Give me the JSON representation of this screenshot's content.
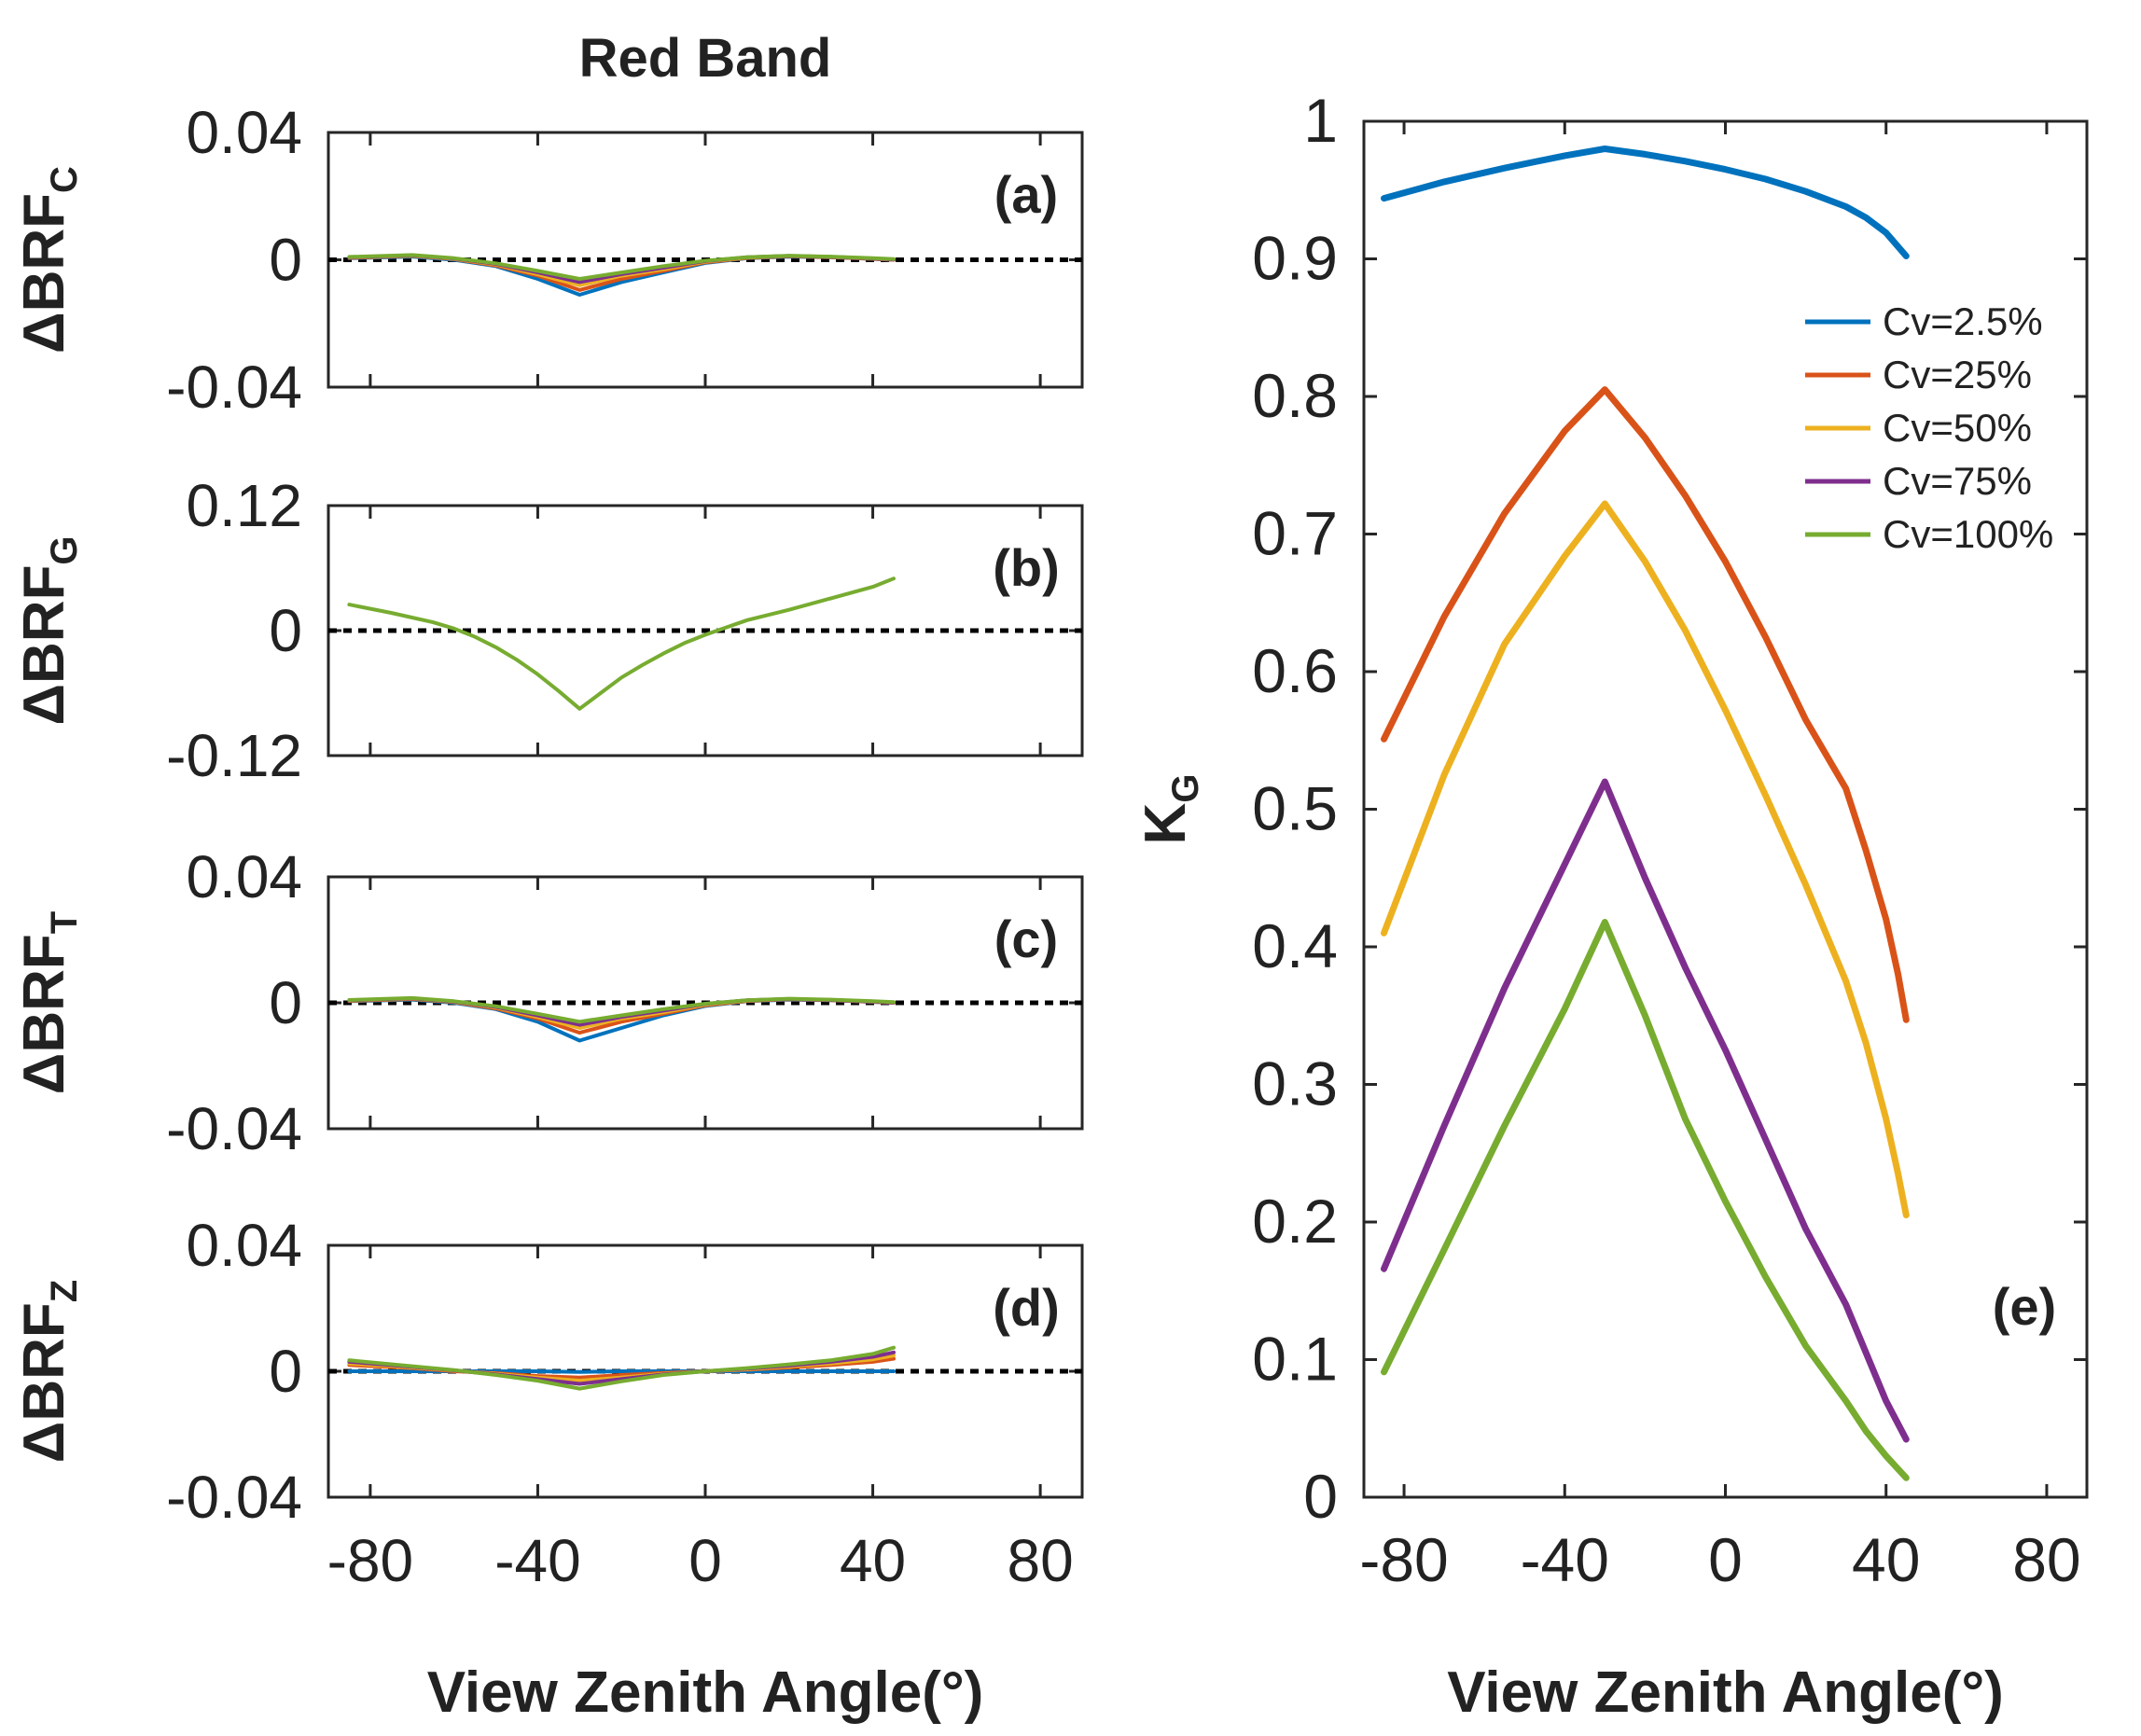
{
  "figure": {
    "title": "Red Band"
  },
  "colors": {
    "Cv=2.5%": "#0072BD",
    "Cv=25%": "#D95319",
    "Cv=50%": "#EDB120",
    "Cv=75%": "#7E2F8E",
    "Cv=100%": "#77AC30",
    "zero_line": "#000000",
    "axes": "#262626"
  },
  "chart_data": [
    {
      "id": "a",
      "type": "line",
      "panel_label": "(a)",
      "ylabel_main": "ΔBRF",
      "ylabel_sub": "C",
      "xlabel": "",
      "xlim": [
        -90,
        90
      ],
      "ylim": [
        -0.04,
        0.04
      ],
      "xticks": [
        -80,
        -40,
        0,
        40,
        80
      ],
      "yticks": [
        -0.04,
        0,
        0.04
      ],
      "ytick_labels": [
        "-0.04",
        "0",
        "0.04"
      ],
      "xtick_labels": [],
      "zero_line": true,
      "x": [
        -85,
        -70,
        -60,
        -50,
        -40,
        -30,
        -20,
        -10,
        0,
        10,
        20,
        30,
        40,
        45
      ],
      "series": [
        {
          "name": "Cv=2.5%",
          "values": [
            0.0005,
            0.001,
            0.0,
            -0.002,
            -0.006,
            -0.011,
            -0.007,
            -0.004,
            -0.001,
            0.0005,
            0.001,
            0.0008,
            0.0003,
            0.0
          ]
        },
        {
          "name": "Cv=25%",
          "values": [
            0.0006,
            0.0012,
            0.0002,
            -0.0018,
            -0.005,
            -0.0095,
            -0.006,
            -0.0035,
            -0.0008,
            0.0006,
            0.0011,
            0.0008,
            0.0003,
            0.0
          ]
        },
        {
          "name": "Cv=50%",
          "values": [
            0.0007,
            0.0013,
            0.0003,
            -0.0015,
            -0.0045,
            -0.008,
            -0.005,
            -0.003,
            -0.0006,
            0.0007,
            0.0012,
            0.0009,
            0.0004,
            0.0001
          ]
        },
        {
          "name": "Cv=75%",
          "values": [
            0.0008,
            0.0014,
            0.0004,
            -0.0013,
            -0.004,
            -0.007,
            -0.0045,
            -0.0025,
            -0.0004,
            0.0008,
            0.0012,
            0.0009,
            0.0004,
            0.0001
          ]
        },
        {
          "name": "Cv=100%",
          "values": [
            0.0009,
            0.0015,
            0.0005,
            -0.0011,
            -0.0035,
            -0.006,
            -0.004,
            -0.002,
            -0.0003,
            0.0008,
            0.0013,
            0.001,
            0.0005,
            0.0002
          ]
        }
      ]
    },
    {
      "id": "b",
      "type": "line",
      "panel_label": "(b)",
      "ylabel_main": "ΔBRF",
      "ylabel_sub": "G",
      "xlabel": "",
      "xlim": [
        -90,
        90
      ],
      "ylim": [
        -0.12,
        0.12
      ],
      "xticks": [
        -80,
        -40,
        0,
        40,
        80
      ],
      "yticks": [
        -0.12,
        0,
        0.12
      ],
      "ytick_labels": [
        "-0.12",
        "0",
        "0.12"
      ],
      "xtick_labels": [],
      "zero_line": true,
      "x": [
        -85,
        -75,
        -65,
        -60,
        -55,
        -50,
        -45,
        -40,
        -35,
        -30,
        -25,
        -20,
        -15,
        -10,
        -5,
        0,
        5,
        10,
        20,
        30,
        40,
        45
      ],
      "series": [
        {
          "name": "Cv=100%",
          "values": [
            0.025,
            0.017,
            0.008,
            0.002,
            -0.006,
            -0.016,
            -0.028,
            -0.042,
            -0.058,
            -0.075,
            -0.06,
            -0.045,
            -0.033,
            -0.022,
            -0.012,
            -0.004,
            0.003,
            0.01,
            0.02,
            0.031,
            0.042,
            0.05
          ]
        }
      ]
    },
    {
      "id": "c",
      "type": "line",
      "panel_label": "(c)",
      "ylabel_main": "ΔBRF",
      "ylabel_sub": "T",
      "xlabel": "",
      "xlim": [
        -90,
        90
      ],
      "ylim": [
        -0.04,
        0.04
      ],
      "xticks": [
        -80,
        -40,
        0,
        40,
        80
      ],
      "yticks": [
        -0.04,
        0,
        0.04
      ],
      "ytick_labels": [
        "-0.04",
        "0",
        "0.04"
      ],
      "xtick_labels": [],
      "zero_line": true,
      "x": [
        -85,
        -70,
        -60,
        -50,
        -40,
        -30,
        -20,
        -10,
        0,
        10,
        20,
        30,
        40,
        45
      ],
      "series": [
        {
          "name": "Cv=2.5%",
          "values": [
            0.0005,
            0.001,
            0.0,
            -0.002,
            -0.006,
            -0.012,
            -0.008,
            -0.004,
            -0.001,
            0.0005,
            0.001,
            0.0008,
            0.0003,
            0.0
          ]
        },
        {
          "name": "Cv=25%",
          "values": [
            0.0006,
            0.0012,
            0.0002,
            -0.0018,
            -0.005,
            -0.0095,
            -0.006,
            -0.0035,
            -0.0008,
            0.0006,
            0.0011,
            0.0008,
            0.0003,
            0.0
          ]
        },
        {
          "name": "Cv=50%",
          "values": [
            0.0007,
            0.0013,
            0.0003,
            -0.0015,
            -0.0045,
            -0.008,
            -0.005,
            -0.003,
            -0.0006,
            0.0007,
            0.0012,
            0.0009,
            0.0004,
            0.0001
          ]
        },
        {
          "name": "Cv=75%",
          "values": [
            0.0008,
            0.0014,
            0.0004,
            -0.0013,
            -0.004,
            -0.007,
            -0.0045,
            -0.0025,
            -0.0004,
            0.0008,
            0.0012,
            0.0009,
            0.0004,
            0.0001
          ]
        },
        {
          "name": "Cv=100%",
          "values": [
            0.0009,
            0.0015,
            0.0005,
            -0.0011,
            -0.0035,
            -0.006,
            -0.004,
            -0.002,
            -0.0003,
            0.0008,
            0.0013,
            0.001,
            0.0005,
            0.0002
          ]
        }
      ]
    },
    {
      "id": "d",
      "type": "line",
      "panel_label": "(d)",
      "ylabel_main": "ΔBRF",
      "ylabel_sub": "Z",
      "xlabel": "View Zenith Angle(°)",
      "xlim": [
        -90,
        90
      ],
      "ylim": [
        -0.04,
        0.04
      ],
      "xticks": [
        -80,
        -40,
        0,
        40,
        80
      ],
      "yticks": [
        -0.04,
        0,
        0.04
      ],
      "ytick_labels": [
        "-0.04",
        "0",
        "0.04"
      ],
      "xtick_labels": [
        "-80",
        "-40",
        "0",
        "40",
        "80"
      ],
      "zero_line": true,
      "x": [
        -85,
        -70,
        -60,
        -50,
        -40,
        -30,
        -20,
        -10,
        0,
        10,
        20,
        30,
        40,
        45
      ],
      "series": [
        {
          "name": "Cv=2.5%",
          "values": [
            0.0,
            0.0,
            0.0,
            0.0,
            0.0,
            -0.0002,
            0.0,
            0.0,
            0.0,
            0.0,
            0.0,
            0.0,
            0.0,
            0.0
          ]
        },
        {
          "name": "Cv=25%",
          "values": [
            0.002,
            0.001,
            0.0,
            -0.0006,
            -0.0015,
            -0.002,
            -0.0012,
            -0.0005,
            0.0,
            0.0005,
            0.0012,
            0.002,
            0.003,
            0.004
          ]
        },
        {
          "name": "Cv=50%",
          "values": [
            0.0025,
            0.0012,
            0.0002,
            -0.0008,
            -0.002,
            -0.003,
            -0.002,
            -0.0008,
            0.0,
            0.0006,
            0.0015,
            0.0025,
            0.0038,
            0.005
          ]
        },
        {
          "name": "Cv=75%",
          "values": [
            0.003,
            0.0014,
            0.0003,
            -0.001,
            -0.0025,
            -0.004,
            -0.0025,
            -0.001,
            0.0,
            0.0008,
            0.0018,
            0.003,
            0.0046,
            0.006
          ]
        },
        {
          "name": "Cv=100%",
          "values": [
            0.0035,
            0.0016,
            0.0004,
            -0.0012,
            -0.003,
            -0.0055,
            -0.0032,
            -0.0012,
            0.0,
            0.001,
            0.0022,
            0.0035,
            0.0055,
            0.0075
          ]
        }
      ]
    },
    {
      "id": "e",
      "type": "line",
      "panel_label": "(e)",
      "ylabel_main": "K",
      "ylabel_sub": "G",
      "xlabel": "View Zenith Angle(°)",
      "xlim": [
        -90,
        90
      ],
      "ylim": [
        0,
        1
      ],
      "xticks": [
        -80,
        -40,
        0,
        40,
        80
      ],
      "xtick_labels": [
        "-80",
        "-40",
        "0",
        "40",
        "80"
      ],
      "yticks": [
        0,
        0.1,
        0.2,
        0.3,
        0.4,
        0.5,
        0.6,
        0.7,
        0.8,
        0.9,
        1
      ],
      "ytick_labels": [
        "0",
        "0.1",
        "0.2",
        "0.3",
        "0.4",
        "0.5",
        "0.6",
        "0.7",
        "0.8",
        "0.9",
        "1"
      ],
      "legend": "top-right",
      "zero_line": false,
      "series": [
        {
          "name": "Cv=2.5%",
          "x": [
            -85,
            -70,
            -55,
            -40,
            -30,
            -20,
            -10,
            0,
            10,
            20,
            30,
            35,
            40,
            45
          ],
          "values": [
            0.944,
            0.956,
            0.966,
            0.975,
            0.98,
            0.976,
            0.971,
            0.965,
            0.958,
            0.949,
            0.938,
            0.93,
            0.919,
            0.902
          ]
        },
        {
          "name": "Cv=25%",
          "x": [
            -85,
            -70,
            -55,
            -40,
            -30,
            -20,
            -10,
            0,
            10,
            20,
            30,
            35,
            40,
            43,
            45
          ],
          "values": [
            0.551,
            0.64,
            0.715,
            0.775,
            0.805,
            0.77,
            0.728,
            0.68,
            0.625,
            0.565,
            0.515,
            0.47,
            0.42,
            0.38,
            0.347
          ]
        },
        {
          "name": "Cv=50%",
          "x": [
            -85,
            -70,
            -55,
            -40,
            -30,
            -20,
            -10,
            0,
            10,
            20,
            30,
            35,
            40,
            43,
            45
          ],
          "values": [
            0.41,
            0.525,
            0.62,
            0.684,
            0.722,
            0.68,
            0.63,
            0.572,
            0.51,
            0.445,
            0.375,
            0.33,
            0.275,
            0.235,
            0.205
          ]
        },
        {
          "name": "Cv=75%",
          "x": [
            -85,
            -70,
            -55,
            -40,
            -30,
            -20,
            -10,
            0,
            10,
            20,
            30,
            35,
            40,
            45
          ],
          "values": [
            0.166,
            0.27,
            0.37,
            0.46,
            0.52,
            0.45,
            0.385,
            0.325,
            0.26,
            0.195,
            0.14,
            0.105,
            0.07,
            0.042
          ]
        },
        {
          "name": "Cv=100%",
          "x": [
            -85,
            -70,
            -55,
            -40,
            -30,
            -20,
            -10,
            0,
            10,
            20,
            30,
            35,
            40,
            45
          ],
          "values": [
            0.091,
            0.18,
            0.27,
            0.355,
            0.418,
            0.35,
            0.275,
            0.215,
            0.16,
            0.11,
            0.07,
            0.048,
            0.03,
            0.014
          ]
        }
      ]
    }
  ]
}
